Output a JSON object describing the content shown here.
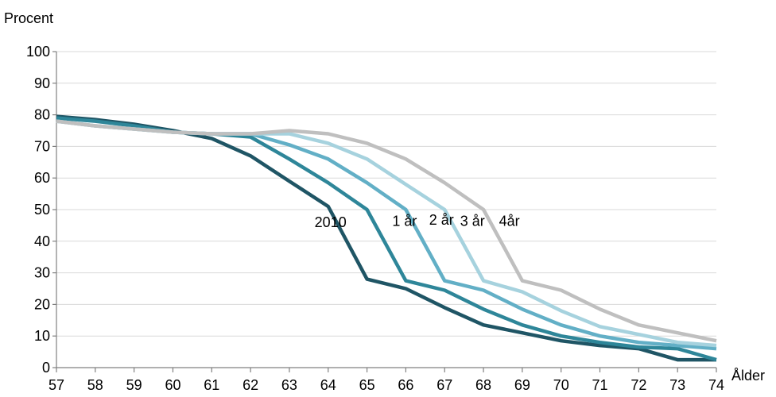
{
  "chart_data": {
    "type": "line",
    "title": "",
    "ylabel": "Procent",
    "xlabel": "Ålder",
    "ylim": [
      0,
      100
    ],
    "yticks": [
      0,
      10,
      20,
      30,
      40,
      50,
      60,
      70,
      80,
      90,
      100
    ],
    "x": [
      57,
      58,
      59,
      60,
      61,
      62,
      63,
      64,
      65,
      66,
      67,
      68,
      69,
      70,
      71,
      72,
      73,
      74
    ],
    "grid": true,
    "legend": "none",
    "series": [
      {
        "name": "2010",
        "color": "#1f5565",
        "values": [
          79.5,
          78.5,
          77,
          75,
          72.5,
          67,
          59,
          51,
          28,
          25,
          19,
          13.5,
          11,
          8.5,
          7,
          6,
          2.5,
          2.5
        ]
      },
      {
        "name": "1 år",
        "color": "#2e8699",
        "values": [
          79,
          78,
          76.5,
          74.5,
          74,
          73,
          66,
          58.5,
          50,
          27.5,
          24.5,
          18.5,
          13.5,
          10,
          8,
          6.5,
          6,
          2.5
        ]
      },
      {
        "name": "2 år",
        "color": "#62afc6",
        "values": [
          78,
          76.5,
          75.5,
          74.5,
          74,
          74,
          70.5,
          66,
          58.5,
          50,
          27.5,
          24.5,
          18.5,
          13.5,
          10,
          8,
          7,
          6
        ]
      },
      {
        "name": "3 år",
        "color": "#a6d2de",
        "values": [
          78,
          76.5,
          75.5,
          74.5,
          74,
          74,
          74,
          71,
          66,
          58,
          50,
          27.5,
          24,
          18,
          13,
          10.5,
          8,
          7
        ]
      },
      {
        "name": "4år",
        "color": "#bfbfbf",
        "values": [
          78,
          76.5,
          75.5,
          74.5,
          74,
          74,
          75,
          74,
          71,
          66,
          58.5,
          50,
          27.5,
          24.5,
          18.5,
          13.5,
          11,
          8.5
        ]
      }
    ],
    "annotations": [
      {
        "text": "2010",
        "x": 63.65,
        "y": 44.5
      },
      {
        "text": "1 år",
        "x": 65.65,
        "y": 44.8
      },
      {
        "text": "2 år",
        "x": 66.6,
        "y": 45.2
      },
      {
        "text": "3 år",
        "x": 67.4,
        "y": 44.8
      },
      {
        "text": "4år",
        "x": 68.4,
        "y": 44.8
      }
    ]
  }
}
